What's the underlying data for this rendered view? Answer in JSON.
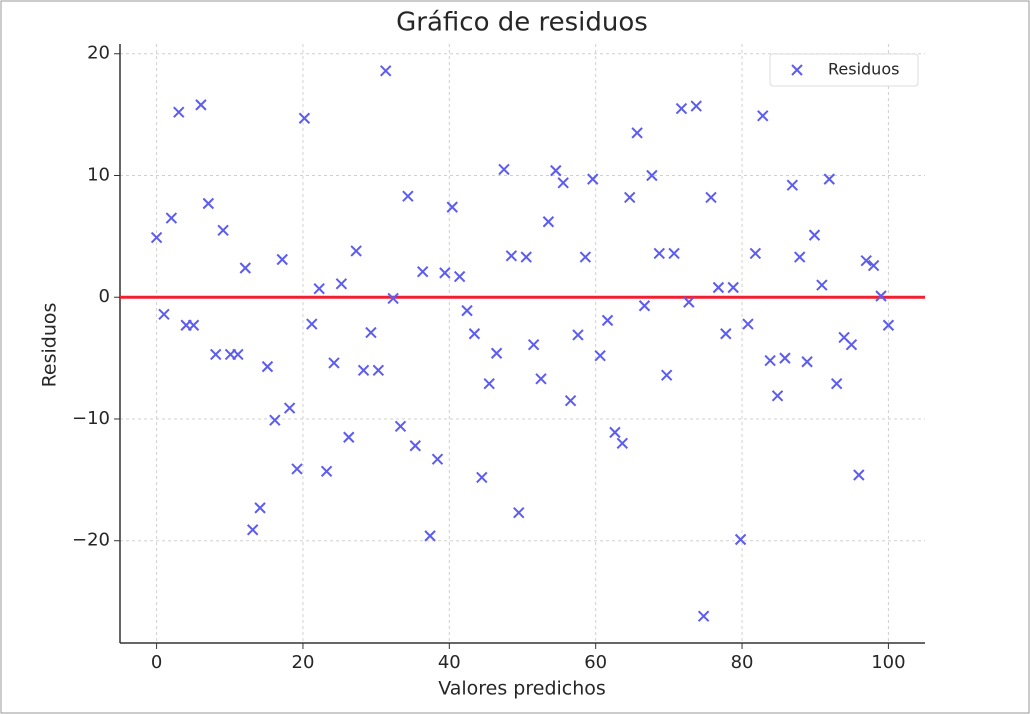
{
  "chart_data": {
    "type": "scatter",
    "title": "Gráfico de residuos",
    "xlabel": "Valores predichos",
    "ylabel": "Residuos",
    "series": [
      {
        "name": "Residuos",
        "color": "#5c5cf0",
        "marker": "x",
        "x": [
          0,
          1.01,
          2.02,
          3.03,
          4.04,
          5.05,
          6.06,
          7.07,
          8.08,
          9.09,
          10.1,
          11.11,
          12.12,
          13.13,
          14.14,
          15.15,
          16.16,
          17.17,
          18.18,
          19.19,
          20.2,
          21.21,
          22.22,
          23.23,
          24.24,
          25.25,
          26.26,
          27.27,
          28.28,
          29.29,
          30.3,
          31.31,
          32.32,
          33.33,
          34.34,
          35.35,
          36.36,
          37.37,
          38.38,
          39.39,
          40.4,
          41.41,
          42.42,
          43.43,
          44.44,
          45.45,
          46.46,
          47.47,
          48.48,
          49.49,
          50.51,
          51.52,
          52.53,
          53.54,
          54.55,
          55.56,
          56.57,
          57.58,
          58.59,
          59.6,
          60.61,
          61.62,
          62.63,
          63.64,
          64.65,
          65.66,
          66.67,
          67.68,
          68.69,
          69.7,
          70.71,
          71.72,
          72.73,
          73.74,
          74.75,
          75.76,
          76.77,
          77.78,
          78.79,
          79.8,
          80.81,
          81.82,
          82.83,
          83.84,
          84.85,
          85.86,
          86.87,
          87.88,
          88.89,
          89.9,
          90.91,
          91.92,
          92.93,
          93.94,
          94.95,
          95.96,
          96.97,
          97.98,
          98.99,
          100
        ],
        "values": [
          4.9,
          -1.4,
          6.5,
          15.2,
          -2.3,
          -2.3,
          15.8,
          7.7,
          -4.7,
          5.5,
          -4.7,
          -4.7,
          2.4,
          -19.1,
          -17.3,
          -5.7,
          -10.1,
          3.1,
          -9.1,
          -14.1,
          14.7,
          -2.2,
          0.7,
          -14.3,
          -5.4,
          1.1,
          -11.5,
          3.8,
          -6.0,
          -2.9,
          -6.0,
          18.6,
          -0.1,
          -10.6,
          8.3,
          -12.2,
          2.1,
          -19.6,
          -13.3,
          2.0,
          7.4,
          1.7,
          -1.1,
          -3.0,
          -14.8,
          -7.1,
          -4.6,
          10.5,
          3.4,
          -17.7,
          3.3,
          -3.9,
          -6.7,
          6.2,
          10.4,
          9.4,
          -8.5,
          -3.1,
          3.3,
          9.7,
          -4.8,
          -1.9,
          -11.1,
          -12.0,
          8.2,
          13.5,
          -0.7,
          10.0,
          3.6,
          -6.4,
          3.6,
          15.5,
          -0.4,
          15.7,
          -26.2,
          8.2,
          0.8,
          -3.0,
          0.8,
          -19.9,
          -2.2,
          3.6,
          14.9,
          -5.2,
          -8.1,
          -5.0,
          9.2,
          3.3,
          -5.3,
          5.1,
          1.0,
          9.7,
          -7.1,
          -3.3,
          -3.9,
          -14.6,
          3.0,
          2.6,
          0.1,
          -2.3
        ]
      }
    ],
    "reference_line": {
      "y": 0,
      "color": "#f02030"
    },
    "xlim": [
      -5,
      105
    ],
    "ylim": [
      -28.4,
      20.8
    ],
    "xticks": [
      0,
      20,
      40,
      60,
      80,
      100
    ],
    "yticks": [
      {
        "value": -20,
        "label": "−20"
      },
      {
        "value": -10,
        "label": "−10"
      },
      0,
      10,
      20
    ],
    "grid": true,
    "legend": "upper right"
  }
}
